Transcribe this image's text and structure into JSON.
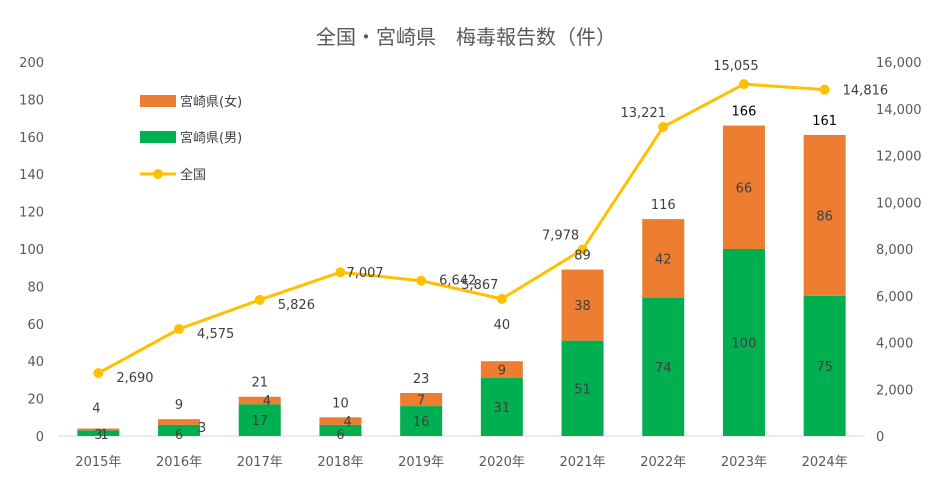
{
  "chart_data": {
    "type": "bar",
    "title": "全国・宮崎県　梅毒報告数（件）",
    "categories": [
      "2015年",
      "2016年",
      "2017年",
      "2018年",
      "2019年",
      "2020年",
      "2021年",
      "2022年",
      "2023年",
      "2024年"
    ],
    "series": [
      {
        "name": "宮崎県(男)",
        "kind": "bar-stacked",
        "axis": "left",
        "color": "#00B050",
        "values": [
          3,
          6,
          17,
          6,
          16,
          31,
          51,
          74,
          100,
          75
        ],
        "labels": [
          "3",
          "6",
          "17",
          "6",
          "16",
          "31",
          "51",
          "74",
          "100",
          "75"
        ]
      },
      {
        "name": "宮崎県(女)",
        "kind": "bar-stacked",
        "axis": "left",
        "color": "#ED7D31",
        "values": [
          1,
          3,
          4,
          4,
          7,
          9,
          38,
          42,
          66,
          86
        ],
        "labels": [
          "1",
          "3",
          "4",
          "4",
          "7",
          "9",
          "38",
          "42",
          "66",
          "86"
        ]
      },
      {
        "name": "全国",
        "kind": "line",
        "axis": "right",
        "color": "#FFC000",
        "values": [
          2690,
          4575,
          5826,
          7007,
          6642,
          5867,
          7978,
          13221,
          15055,
          14816
        ],
        "labels": [
          "2,690",
          "4,575",
          "5,826",
          "7,007",
          "6,642",
          "5,867",
          "7,978",
          "13,221",
          "15,055",
          "14,816"
        ]
      }
    ],
    "totals": [
      4,
      9,
      21,
      10,
      23,
      40,
      89,
      116,
      166,
      161
    ],
    "total_labels": [
      "4",
      "9",
      "21",
      "10",
      "23",
      "40",
      "89",
      "116",
      "166",
      "161"
    ],
    "ylim_left": [
      0,
      200
    ],
    "ylim_right": [
      0,
      16000
    ],
    "yticks_left": [
      "0",
      "20",
      "40",
      "60",
      "80",
      "100",
      "120",
      "140",
      "160",
      "180",
      "200"
    ],
    "yticks_right": [
      "0",
      "2,000",
      "4,000",
      "6,000",
      "8,000",
      "10,000",
      "12,000",
      "14,000",
      "16,000"
    ],
    "legend": [
      {
        "label": "宮崎県(女)",
        "color": "#ED7D31",
        "kind": "box"
      },
      {
        "label": "宮崎県(男)",
        "color": "#00B050",
        "kind": "box"
      },
      {
        "label": "全国",
        "color": "#FFC000",
        "kind": "line"
      }
    ],
    "legend_position": "top-left",
    "grid": false
  }
}
